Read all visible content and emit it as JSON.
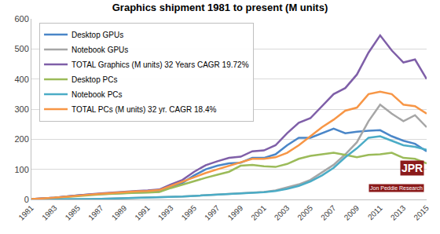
{
  "chart_data": {
    "type": "line",
    "title": "Graphics shipment 1981 to present (M units)",
    "x": [
      1981,
      1982,
      1983,
      1984,
      1985,
      1986,
      1987,
      1988,
      1989,
      1990,
      1991,
      1992,
      1993,
      1994,
      1995,
      1996,
      1997,
      1998,
      1999,
      2000,
      2001,
      2002,
      2003,
      2004,
      2005,
      2006,
      2007,
      2008,
      2009,
      2010,
      2011,
      2012,
      2013,
      2014,
      2015
    ],
    "series": [
      {
        "name": "Desktop GPUs",
        "color": "#4a86c8",
        "values": [
          1,
          3,
          6,
          10,
          14,
          16,
          18,
          20,
          22,
          23,
          24,
          26,
          42,
          55,
          80,
          100,
          112,
          120,
          122,
          138,
          138,
          150,
          180,
          205,
          205,
          220,
          235,
          220,
          225,
          228,
          230,
          210,
          195,
          185,
          160
        ]
      },
      {
        "name": "Notebook GPUs",
        "color": "#a6a6a6",
        "values": [
          0,
          0,
          0,
          0,
          0,
          1,
          2,
          3,
          4,
          5,
          6,
          7,
          8,
          10,
          12,
          14,
          15,
          18,
          20,
          22,
          25,
          30,
          40,
          50,
          65,
          90,
          115,
          150,
          190,
          260,
          315,
          285,
          260,
          280,
          240
        ]
      },
      {
        "name": "TOTAL Graphics (M units) 32 Years CAGR 19.72%",
        "color": "#7f5fa8",
        "values": [
          1,
          3,
          6,
          10,
          14,
          17,
          20,
          23,
          26,
          28,
          30,
          33,
          50,
          65,
          92,
          114,
          127,
          138,
          142,
          160,
          163,
          180,
          220,
          255,
          270,
          310,
          350,
          370,
          415,
          488,
          545,
          495,
          455,
          465,
          400
        ]
      },
      {
        "name": "Desktop PCs",
        "color": "#9bbb59",
        "values": [
          1,
          2,
          5,
          8,
          12,
          15,
          17,
          19,
          21,
          22,
          23,
          25,
          38,
          50,
          62,
          72,
          82,
          92,
          112,
          115,
          110,
          108,
          118,
          135,
          145,
          150,
          155,
          148,
          140,
          148,
          150,
          155,
          138,
          135,
          120
        ]
      },
      {
        "name": "Notebook PCs",
        "color": "#4bacc6",
        "values": [
          0,
          0,
          0,
          0,
          0,
          1,
          2,
          3,
          4,
          5,
          6,
          7,
          8,
          10,
          12,
          14,
          15,
          17,
          19,
          21,
          24,
          28,
          35,
          45,
          60,
          80,
          105,
          140,
          170,
          205,
          210,
          195,
          180,
          175,
          165
        ]
      },
      {
        "name": "TOTAL PCs (M units) 32 yr. CAGR 18.4%",
        "color": "#f79646",
        "values": [
          1,
          3,
          6,
          9,
          13,
          16,
          19,
          22,
          25,
          27,
          28,
          31,
          45,
          60,
          75,
          88,
          100,
          112,
          125,
          135,
          135,
          140,
          155,
          180,
          210,
          240,
          265,
          295,
          305,
          350,
          358,
          350,
          315,
          310,
          285
        ]
      }
    ],
    "xlim": [
      1981,
      2015
    ],
    "xticks": [
      1981,
      1983,
      1985,
      1987,
      1989,
      1991,
      1993,
      1995,
      1997,
      1999,
      2001,
      2003,
      2005,
      2007,
      2009,
      2011,
      2013,
      2015
    ],
    "ylim": [
      0,
      600
    ],
    "yticks": [
      0,
      100,
      200,
      300,
      400,
      500,
      600
    ],
    "grid": true,
    "legend": "upper left",
    "annotations": [
      "JPR",
      "Jon Peddie Research"
    ]
  }
}
